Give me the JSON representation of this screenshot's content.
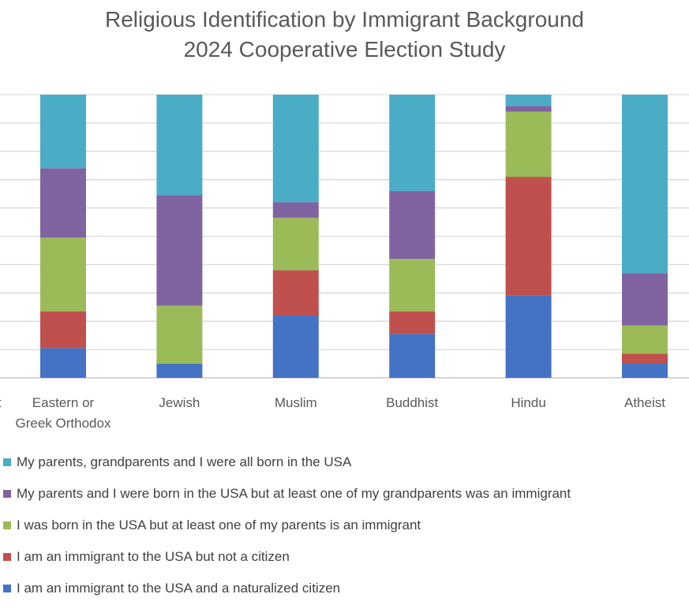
{
  "chart_data": {
    "type": "bar",
    "stacked": true,
    "percent": true,
    "title": "Religious Identification by Immigrant Background",
    "subtitle": "2024 Cooperative Election Study",
    "categories": [
      "Eastern or Greek Orthodox",
      "Jewish",
      "Muslim",
      "Buddhist",
      "Hindu",
      "Atheist"
    ],
    "category_lines": [
      [
        "Eastern or",
        "Greek Orthodox"
      ],
      [
        "Jewish"
      ],
      [
        "Muslim"
      ],
      [
        "Buddhist"
      ],
      [
        "Hindu"
      ],
      [
        "Atheist"
      ]
    ],
    "edge_label_fragment": "t",
    "series": [
      {
        "name": "I am an immigrant to the USA and a naturalized citizen",
        "color": "#4472C4",
        "values": [
          10.5,
          5,
          22,
          15.5,
          29,
          5
        ]
      },
      {
        "name": "I am an immigrant to the USA but not a citizen",
        "color": "#C0504D",
        "values": [
          13,
          0,
          16,
          8,
          42,
          3.5
        ]
      },
      {
        "name": "I was born in the USA but at least one of my parents is an immigrant",
        "color": "#9BBB59",
        "values": [
          26,
          20.5,
          18.5,
          18.5,
          23,
          10
        ]
      },
      {
        "name": "My parents and I were born in the USA but at least one of my grandparents was an immigrant",
        "color": "#8064A2",
        "values": [
          24.5,
          39,
          5.5,
          24,
          2,
          18.5
        ]
      },
      {
        "name": "My parents, grandparents and I were all born in the USA",
        "color": "#4BACC6",
        "values": [
          26,
          35.5,
          38,
          34,
          4,
          63
        ]
      }
    ],
    "legend_order": [
      4,
      3,
      2,
      1,
      0
    ],
    "ylim": [
      0,
      100
    ],
    "grid": true,
    "legend_position": "bottom"
  }
}
